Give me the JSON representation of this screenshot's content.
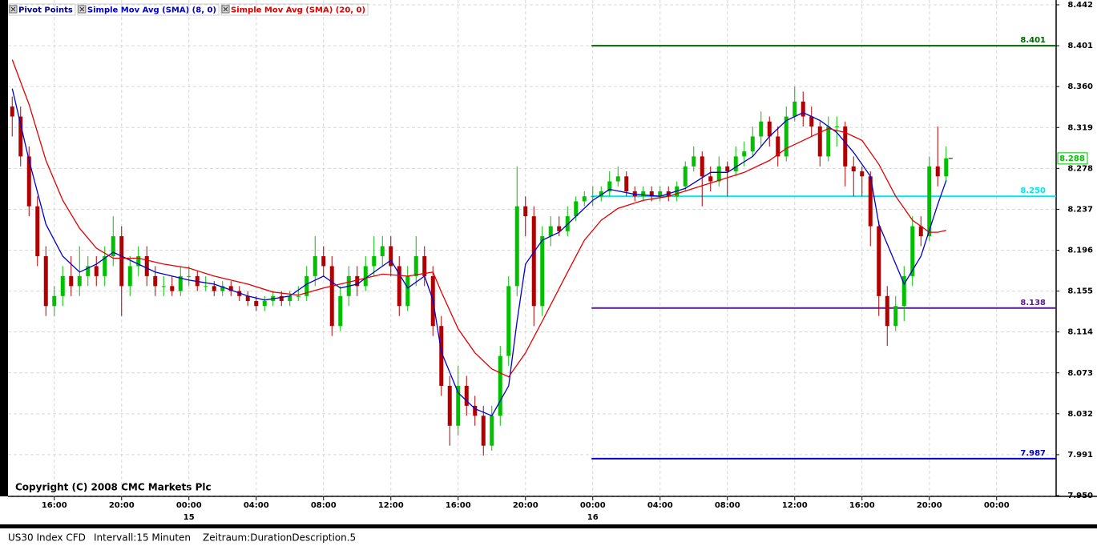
{
  "chart_data": {
    "type": "candlestick",
    "legend": "top-left",
    "grid": true,
    "up_color": "#00c000",
    "down_color": "#b00000",
    "ylim": [
      7.95,
      8.442
    ],
    "yticks": [
      8.442,
      8.401,
      {
        "value": 8.36,
        "label": "8.360"
      },
      8.319,
      8.278,
      8.237,
      8.196,
      8.155,
      8.114,
      8.073,
      8.032,
      7.991,
      {
        "value": 7.95,
        "label": "7.950"
      }
    ],
    "xlim": [
      0,
      121
    ],
    "xticks": [
      {
        "value": 5,
        "label": "16:00"
      },
      {
        "value": 13,
        "label": "20:00"
      },
      {
        "value": 21,
        "label": "00:00"
      },
      {
        "value": 29,
        "label": "04:00"
      },
      {
        "value": 37,
        "label": "08:00"
      },
      {
        "value": 45,
        "label": "12:00"
      },
      {
        "value": 53,
        "label": "16:00"
      },
      {
        "value": 61,
        "label": "20:00"
      },
      {
        "value": 69,
        "label": "00:00"
      },
      {
        "value": 77,
        "label": "04:00"
      },
      {
        "value": 85,
        "label": "08:00"
      },
      {
        "value": 93,
        "label": "12:00"
      },
      {
        "value": 101,
        "label": "16:00"
      },
      {
        "value": 109,
        "label": "20:00"
      },
      {
        "value": 117,
        "label": "00:00"
      }
    ],
    "date_labels": [
      {
        "value": 21,
        "label": "15"
      },
      {
        "value": 69,
        "label": "16"
      }
    ],
    "ohlc": [
      [
        8.34,
        8.35,
        8.31,
        8.33
      ],
      [
        8.33,
        8.34,
        8.28,
        8.29
      ],
      [
        8.29,
        8.3,
        8.23,
        8.24
      ],
      [
        8.24,
        8.25,
        8.18,
        8.19
      ],
      [
        8.19,
        8.2,
        8.13,
        8.14
      ],
      [
        8.14,
        8.16,
        8.13,
        8.15
      ],
      [
        8.15,
        8.18,
        8.14,
        8.17
      ],
      [
        8.17,
        8.19,
        8.15,
        8.16
      ],
      [
        8.16,
        8.2,
        8.15,
        8.17
      ],
      [
        8.17,
        8.19,
        8.16,
        8.18
      ],
      [
        8.18,
        8.19,
        8.16,
        8.17
      ],
      [
        8.17,
        8.2,
        8.16,
        8.19
      ],
      [
        8.19,
        8.23,
        8.18,
        8.21
      ],
      [
        8.21,
        8.22,
        8.13,
        8.16
      ],
      [
        8.16,
        8.19,
        8.15,
        8.18
      ],
      [
        8.18,
        8.2,
        8.17,
        8.19
      ],
      [
        8.19,
        8.2,
        8.16,
        8.17
      ],
      [
        8.17,
        8.18,
        8.15,
        8.16
      ],
      [
        8.16,
        8.17,
        8.15,
        8.16
      ],
      [
        8.16,
        8.17,
        8.15,
        8.155
      ],
      [
        8.155,
        8.18,
        8.15,
        8.17
      ],
      [
        8.17,
        8.18,
        8.16,
        8.17
      ],
      [
        8.17,
        8.175,
        8.155,
        8.16
      ],
      [
        8.16,
        8.17,
        8.155,
        8.16
      ],
      [
        8.16,
        8.165,
        8.15,
        8.155
      ],
      [
        8.155,
        8.165,
        8.15,
        8.16
      ],
      [
        8.16,
        8.165,
        8.15,
        8.155
      ],
      [
        8.155,
        8.16,
        8.145,
        8.15
      ],
      [
        8.15,
        8.155,
        8.14,
        8.145
      ],
      [
        8.145,
        8.15,
        8.135,
        8.14
      ],
      [
        8.14,
        8.15,
        8.135,
        8.145
      ],
      [
        8.145,
        8.155,
        8.14,
        8.15
      ],
      [
        8.15,
        8.155,
        8.14,
        8.145
      ],
      [
        8.145,
        8.155,
        8.14,
        8.15
      ],
      [
        8.15,
        8.16,
        8.145,
        8.15
      ],
      [
        8.15,
        8.18,
        8.145,
        8.17
      ],
      [
        8.17,
        8.21,
        8.16,
        8.19
      ],
      [
        8.19,
        8.2,
        8.17,
        8.18
      ],
      [
        8.18,
        8.19,
        8.11,
        8.12
      ],
      [
        8.12,
        8.16,
        8.115,
        8.15
      ],
      [
        8.15,
        8.18,
        8.14,
        8.17
      ],
      [
        8.17,
        8.18,
        8.15,
        8.16
      ],
      [
        8.16,
        8.19,
        8.155,
        8.18
      ],
      [
        8.18,
        8.21,
        8.17,
        8.19
      ],
      [
        8.19,
        8.21,
        8.18,
        8.2
      ],
      [
        8.2,
        8.21,
        8.17,
        8.18
      ],
      [
        8.18,
        8.19,
        8.13,
        8.14
      ],
      [
        8.14,
        8.18,
        8.135,
        8.17
      ],
      [
        8.17,
        8.21,
        8.16,
        8.19
      ],
      [
        8.19,
        8.2,
        8.16,
        8.17
      ],
      [
        8.17,
        8.18,
        8.11,
        8.12
      ],
      [
        8.12,
        8.13,
        8.05,
        8.06
      ],
      [
        8.06,
        8.07,
        8.0,
        8.02
      ],
      [
        8.02,
        8.08,
        8.01,
        8.06
      ],
      [
        8.06,
        8.07,
        8.03,
        8.04
      ],
      [
        8.04,
        8.05,
        8.02,
        8.03
      ],
      [
        8.03,
        8.04,
        7.99,
        8.0
      ],
      [
        8.0,
        8.04,
        7.995,
        8.03
      ],
      [
        8.03,
        8.1,
        8.02,
        8.09
      ],
      [
        8.09,
        8.17,
        8.08,
        8.16
      ],
      [
        8.16,
        8.28,
        8.15,
        8.24
      ],
      [
        8.24,
        8.25,
        8.21,
        8.23
      ],
      [
        8.23,
        8.24,
        8.12,
        8.14
      ],
      [
        8.14,
        8.22,
        8.13,
        8.21
      ],
      [
        8.21,
        8.23,
        8.2,
        8.22
      ],
      [
        8.22,
        8.23,
        8.21,
        8.215
      ],
      [
        8.215,
        8.24,
        8.21,
        8.23
      ],
      [
        8.23,
        8.25,
        8.225,
        8.245
      ],
      [
        8.245,
        8.255,
        8.24,
        8.25
      ],
      [
        8.25,
        8.26,
        8.24,
        8.25
      ],
      [
        8.25,
        8.26,
        8.245,
        8.255
      ],
      [
        8.255,
        8.275,
        8.25,
        8.265
      ],
      [
        8.265,
        8.28,
        8.26,
        8.27
      ],
      [
        8.27,
        8.275,
        8.25,
        8.255
      ],
      [
        8.255,
        8.26,
        8.245,
        8.25
      ],
      [
        8.25,
        8.26,
        8.245,
        8.255
      ],
      [
        8.255,
        8.26,
        8.245,
        8.25
      ],
      [
        8.25,
        8.26,
        8.245,
        8.255
      ],
      [
        8.255,
        8.26,
        8.245,
        8.25
      ],
      [
        8.25,
        8.265,
        8.245,
        8.26
      ],
      [
        8.26,
        8.285,
        8.255,
        8.28
      ],
      [
        8.28,
        8.3,
        8.275,
        8.29
      ],
      [
        8.29,
        8.295,
        8.24,
        8.27
      ],
      [
        8.27,
        8.28,
        8.255,
        8.265
      ],
      [
        8.265,
        8.29,
        8.26,
        8.28
      ],
      [
        8.28,
        8.285,
        8.25,
        8.275
      ],
      [
        8.275,
        8.3,
        8.27,
        8.29
      ],
      [
        8.29,
        8.305,
        8.28,
        8.295
      ],
      [
        8.295,
        8.32,
        8.29,
        8.31
      ],
      [
        8.31,
        8.335,
        8.3,
        8.325
      ],
      [
        8.325,
        8.33,
        8.3,
        8.31
      ],
      [
        8.31,
        8.32,
        8.28,
        8.29
      ],
      [
        8.29,
        8.34,
        8.285,
        8.33
      ],
      [
        8.33,
        8.36,
        8.325,
        8.345
      ],
      [
        8.345,
        8.355,
        8.32,
        8.33
      ],
      [
        8.33,
        8.34,
        8.31,
        8.32
      ],
      [
        8.32,
        8.325,
        8.28,
        8.29
      ],
      [
        8.29,
        8.33,
        8.285,
        8.32
      ],
      [
        8.32,
        8.33,
        8.3,
        8.32
      ],
      [
        8.32,
        8.325,
        8.26,
        8.28
      ],
      [
        8.28,
        8.29,
        8.25,
        8.275
      ],
      [
        8.275,
        8.28,
        8.25,
        8.27
      ],
      [
        8.27,
        8.275,
        8.2,
        8.22
      ],
      [
        8.22,
        8.225,
        8.13,
        8.15
      ],
      [
        8.15,
        8.16,
        8.1,
        8.12
      ],
      [
        8.12,
        8.15,
        8.115,
        8.14
      ],
      [
        8.14,
        8.18,
        8.125,
        8.17
      ],
      [
        8.17,
        8.23,
        8.16,
        8.22
      ],
      [
        8.22,
        8.23,
        8.2,
        8.21
      ],
      [
        8.21,
        8.29,
        8.205,
        8.28
      ],
      [
        8.28,
        8.32,
        8.26,
        8.27
      ],
      [
        8.27,
        8.3,
        8.265,
        8.288
      ]
    ],
    "last_price": 8.288,
    "last_color": "#00c000",
    "series": [
      {
        "name": "Simple Mov Avg (SMA) (8, 0)",
        "color": "#0000cc",
        "x": [
          0,
          2,
          4,
          6,
          8,
          10,
          12,
          14,
          17,
          19,
          21,
          24,
          28,
          30,
          33,
          35,
          37,
          39,
          41,
          43,
          45,
          47,
          49,
          50,
          51,
          53,
          55,
          57,
          59,
          60,
          61,
          63,
          65,
          67,
          69,
          71,
          74,
          77,
          80,
          83,
          85,
          88,
          90,
          92,
          94,
          96,
          98,
          100,
          102,
          103,
          105,
          106,
          108,
          110,
          111
        ],
        "values": [
          8.358,
          8.286,
          8.222,
          8.19,
          8.174,
          8.182,
          8.194,
          8.186,
          8.174,
          8.17,
          8.166,
          8.162,
          8.15,
          8.146,
          8.15,
          8.162,
          8.17,
          8.158,
          8.162,
          8.174,
          8.186,
          8.158,
          8.17,
          8.146,
          8.094,
          8.053,
          8.037,
          8.03,
          8.06,
          8.125,
          8.182,
          8.206,
          8.214,
          8.23,
          8.246,
          8.257,
          8.252,
          8.25,
          8.258,
          8.274,
          8.274,
          8.29,
          8.31,
          8.326,
          8.334,
          8.326,
          8.314,
          8.294,
          8.27,
          8.222,
          8.182,
          8.162,
          8.19,
          8.242,
          8.266
        ]
      },
      {
        "name": "Simple Mov Avg (SMA) (20, 0)",
        "color": "#e00000",
        "x": [
          0,
          2,
          4,
          6,
          8,
          10,
          12,
          15,
          18,
          21,
          24,
          28,
          31,
          34,
          37,
          41,
          44,
          47,
          50,
          51,
          53,
          55,
          57,
          59,
          61,
          63,
          66,
          68,
          70,
          72,
          75,
          78,
          81,
          84,
          87,
          90,
          92,
          94,
          97,
          99,
          101,
          103,
          105,
          107,
          109,
          110,
          111
        ],
        "values": [
          8.387,
          8.342,
          8.286,
          8.246,
          8.218,
          8.198,
          8.188,
          8.188,
          8.182,
          8.178,
          8.17,
          8.162,
          8.154,
          8.151,
          8.158,
          8.166,
          8.172,
          8.17,
          8.174,
          8.154,
          8.117,
          8.093,
          8.077,
          8.069,
          8.093,
          8.125,
          8.174,
          8.206,
          8.226,
          8.238,
          8.246,
          8.25,
          8.258,
          8.266,
          8.274,
          8.286,
          8.298,
          8.306,
          8.318,
          8.314,
          8.306,
          8.282,
          8.25,
          8.226,
          8.214,
          8.214,
          8.216
        ]
      }
    ],
    "pivot_points": {
      "name": "Pivot Points",
      "color": "#000080",
      "start": 69,
      "values": [
        8.401,
        8.25,
        8.138,
        7.987
      ],
      "value_labels": [
        "8.401",
        "8.250",
        "8.138",
        "7.987"
      ],
      "colors": [
        "#006400",
        "#00e5ee",
        "#551a8b",
        "#0000cc"
      ]
    },
    "copyright": "Copyright (C) 2008 CMC Markets Plc",
    "status": [
      "US30 Index CFD",
      "Intervall:15 Minuten",
      "Zeitraum:DurationDescription.5"
    ]
  }
}
